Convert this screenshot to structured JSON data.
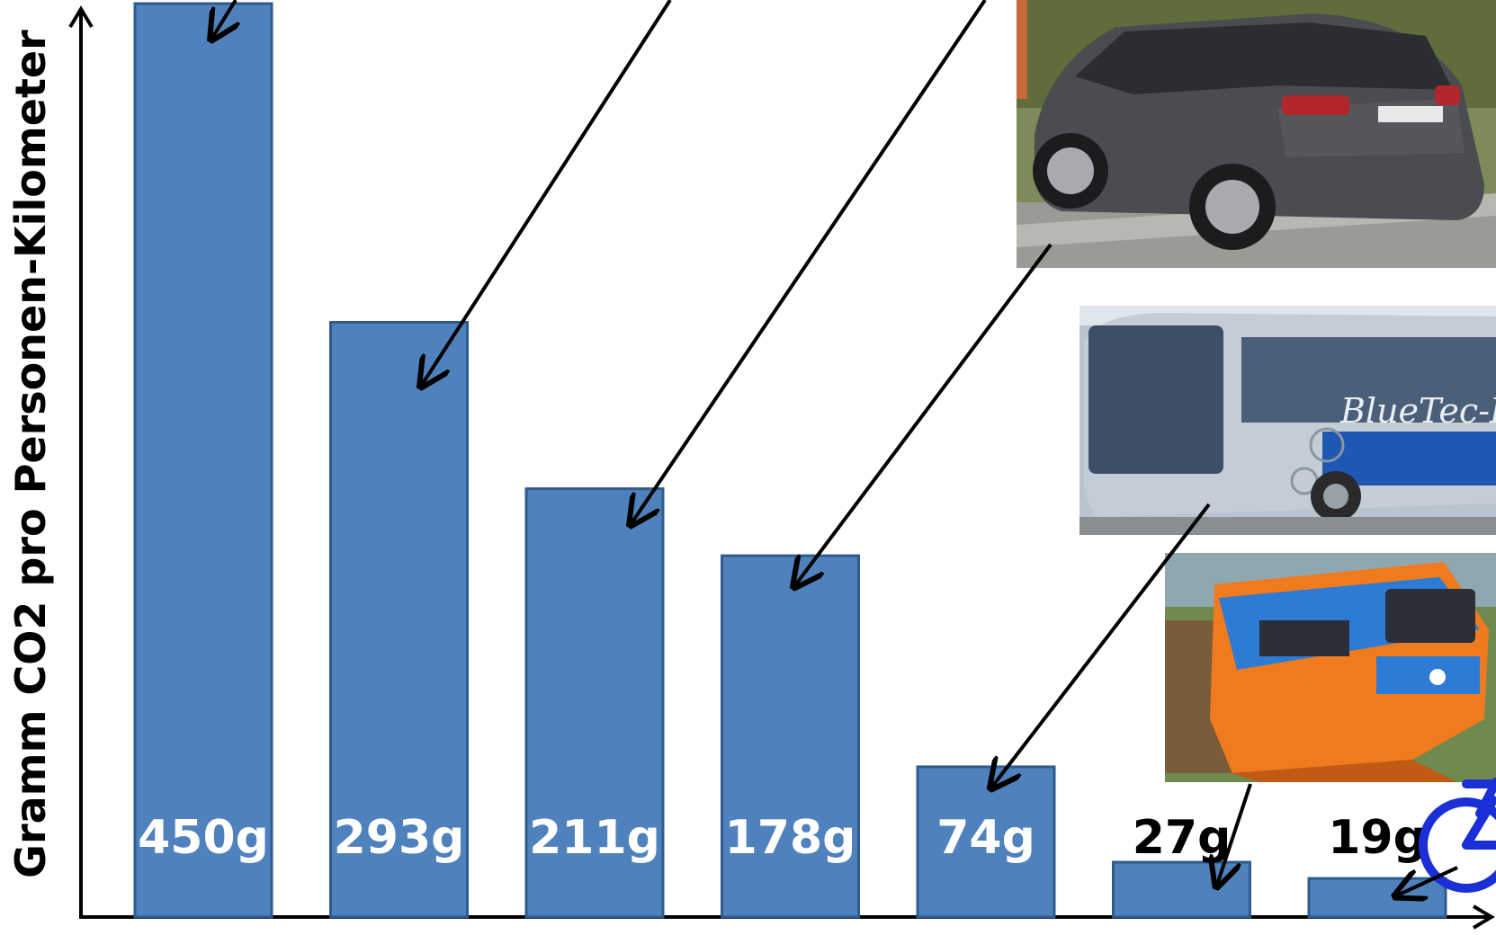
{
  "chart_data": {
    "type": "bar",
    "title": "",
    "xlabel": "",
    "ylabel": "Gramm CO2 pro Personen-Kilometer",
    "ylim": [
      0,
      450
    ],
    "grid": false,
    "legend": "none",
    "bar_color": "#4f81bd",
    "value_labels": [
      "450g",
      "293g",
      "211g",
      "178g",
      "74g",
      "27g",
      "19g"
    ],
    "values": [
      450,
      293,
      211,
      178,
      74,
      27,
      19
    ]
  },
  "illustrations": {
    "car_photo": {
      "icon": "suv-car-icon",
      "body_color": "#4a4c50"
    },
    "bus_photo": {
      "icon": "bus-icon",
      "lettering": "BlueTec Hybrid",
      "accent": "#1f57b5"
    },
    "train_photo": {
      "icon": "suspension-railway-icon",
      "accent": "#f07a1e",
      "stripe": "#2d7bd4"
    },
    "bicycle": {
      "icon": "bicycle-icon",
      "color": "#1a2fd6"
    }
  }
}
